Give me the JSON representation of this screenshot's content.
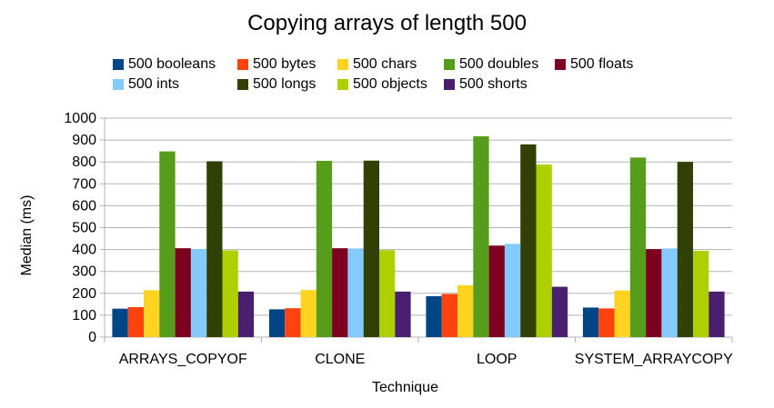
{
  "chart_data": {
    "type": "bar",
    "title": "Copying arrays of length 500",
    "xlabel": "Technique",
    "ylabel": "Median (ms)",
    "ylim": [
      0,
      1000
    ],
    "yticks": [
      0,
      100,
      200,
      300,
      400,
      500,
      600,
      700,
      800,
      900,
      1000
    ],
    "grid": true,
    "legend_position": "top",
    "categories": [
      "ARRAYS_COPYOF",
      "CLONE",
      "LOOP",
      "SYSTEM_ARRAYCOPY"
    ],
    "series": [
      {
        "name": "500 booleans",
        "color": "#004586",
        "values": [
          130,
          127,
          187,
          135
        ]
      },
      {
        "name": "500 bytes",
        "color": "#ff420e",
        "values": [
          137,
          132,
          197,
          131
        ]
      },
      {
        "name": "500 chars",
        "color": "#ffd320",
        "values": [
          214,
          215,
          237,
          213
        ]
      },
      {
        "name": "500 doubles",
        "color": "#579d1c",
        "values": [
          848,
          805,
          917,
          820
        ]
      },
      {
        "name": "500 floats",
        "color": "#7e0021",
        "values": [
          406,
          406,
          418,
          402
        ]
      },
      {
        "name": "500 ints",
        "color": "#83caff",
        "values": [
          402,
          405,
          426,
          405
        ]
      },
      {
        "name": "500 longs",
        "color": "#314004",
        "values": [
          803,
          806,
          880,
          800
        ]
      },
      {
        "name": "500 objects",
        "color": "#aecf00",
        "values": [
          396,
          397,
          788,
          394
        ]
      },
      {
        "name": "500 shorts",
        "color": "#4b1f6f",
        "values": [
          208,
          208,
          230,
          208
        ]
      }
    ]
  }
}
